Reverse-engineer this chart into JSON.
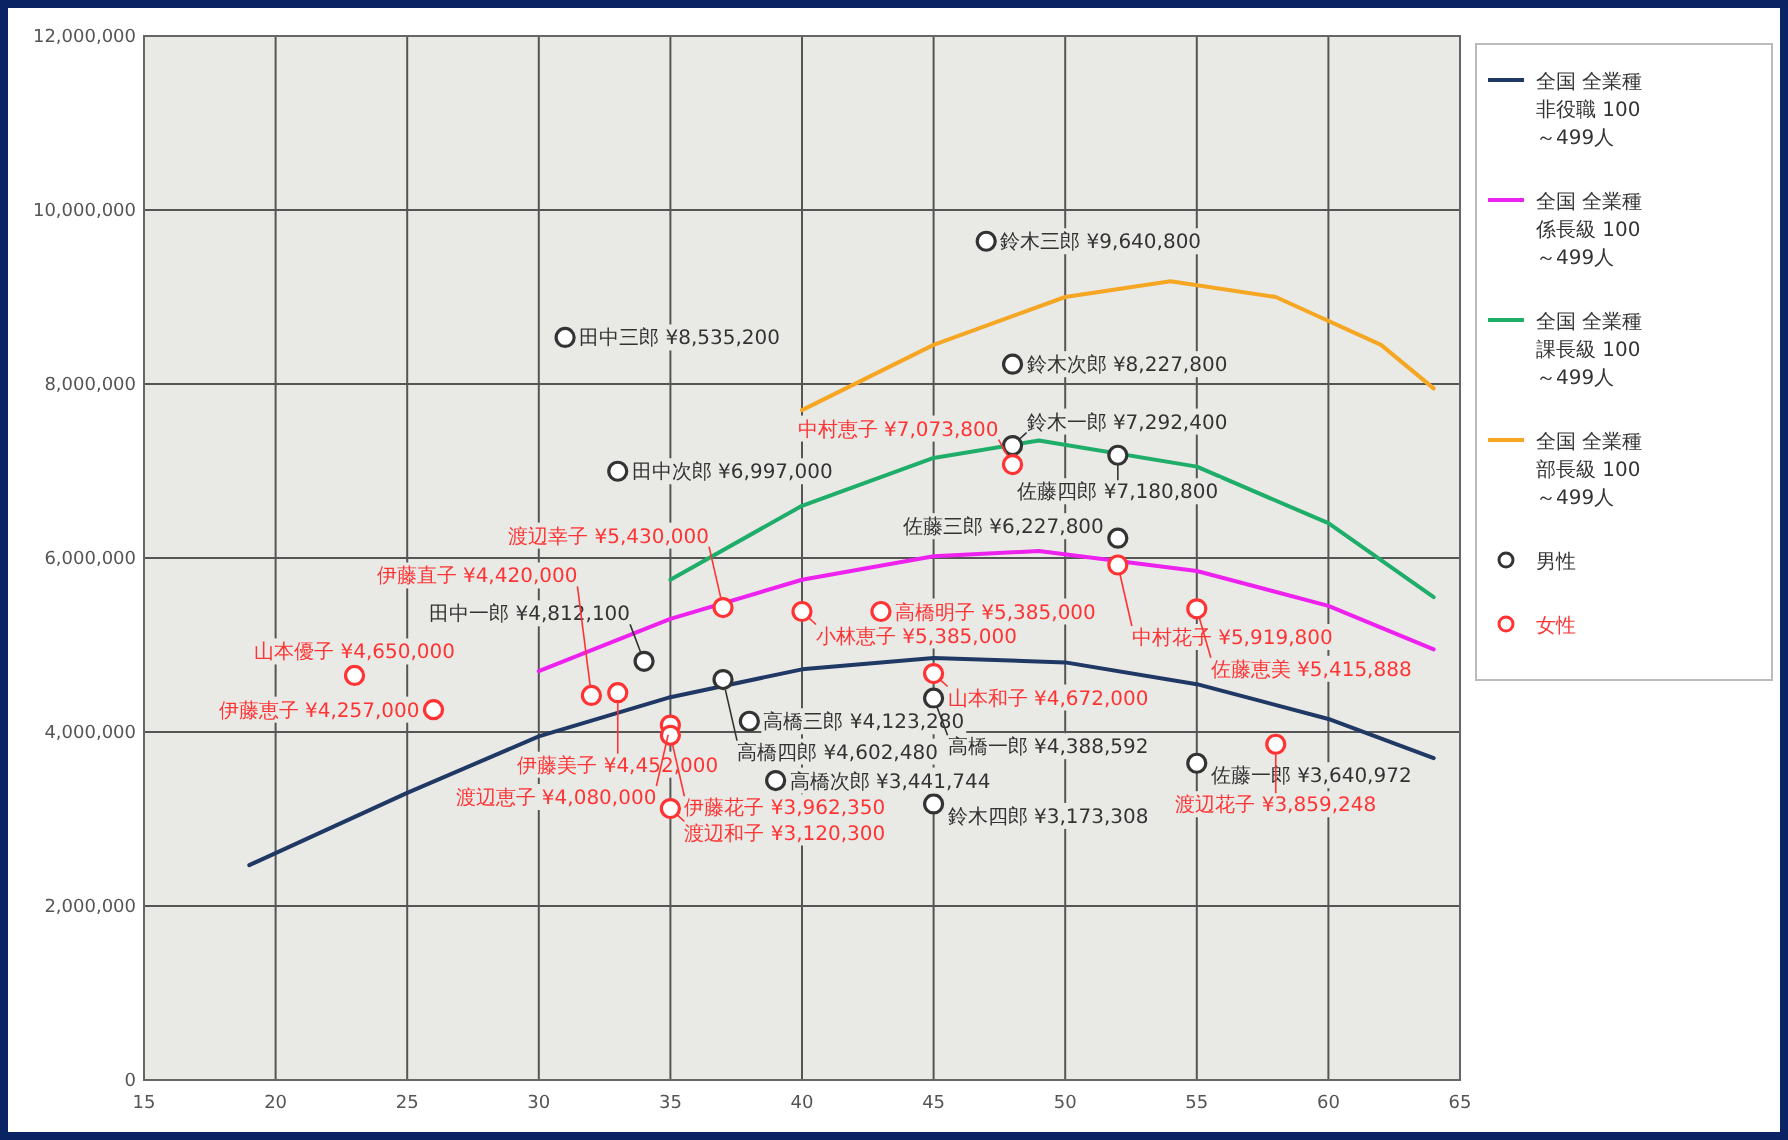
{
  "chart_data": {
    "type": "line",
    "xlim": [
      15,
      65
    ],
    "xticks": [
      15,
      20,
      25,
      30,
      35,
      40,
      45,
      50,
      55,
      60,
      65
    ],
    "ylim": [
      0,
      12000000
    ],
    "yticks": [
      0,
      {
        "value": 2000000,
        "label": "2,000,000"
      },
      {
        "value": 4000000,
        "label": "4,000,000"
      },
      {
        "value": 6000000,
        "label": "6,000,000"
      },
      {
        "value": 8000000,
        "label": "8,000,000"
      },
      {
        "value": 10000000,
        "label": "10,000,000"
      },
      {
        "value": 12000000,
        "label": "12,000,000"
      }
    ],
    "grid": true,
    "legend": "right",
    "series": [
      {
        "name": "全国 全業種非役職 100～499人",
        "color": "#1f3864",
        "x": [
          19,
          25,
          30,
          35,
          40,
          45,
          50,
          55,
          60,
          64
        ],
        "values": [
          2470000,
          3300000,
          3950000,
          4400000,
          4720000,
          4850000,
          4800000,
          4550000,
          4150000,
          3700000
        ]
      },
      {
        "name": "全国 全業種係長級 100～499人",
        "color": "#ee22ee",
        "x": [
          30,
          35,
          40,
          45,
          49,
          55,
          60,
          64
        ],
        "values": [
          4700000,
          5300000,
          5750000,
          6020000,
          6080000,
          5850000,
          5450000,
          4950000
        ]
      },
      {
        "name": "全国 全業種課長級 100～499人",
        "color": "#1fad6a",
        "x": [
          35,
          40,
          45,
          49,
          55,
          60,
          64
        ],
        "values": [
          5750000,
          6600000,
          7150000,
          7350000,
          7050000,
          6400000,
          5550000
        ]
      },
      {
        "name": "全国 全業種部長級 100～499人",
        "color": "#f5a623",
        "x": [
          40,
          45,
          50,
          54,
          58,
          62,
          64
        ],
        "values": [
          7700000,
          8450000,
          9000000,
          9180000,
          9000000,
          8450000,
          7950000
        ]
      },
      {
        "name": "男性",
        "type": "scatter",
        "marker": "circle",
        "color": "#333333",
        "x": [
          31,
          33,
          34,
          37,
          38,
          39,
          45,
          45,
          47,
          48,
          48,
          52,
          52,
          55
        ],
        "values": [
          8535200,
          6997000,
          4812100,
          4602480,
          4123280,
          3441744,
          3173308,
          4388592,
          9640800,
          8227800,
          7292400,
          7180800,
          6227800,
          3640972
        ]
      },
      {
        "name": "女性",
        "type": "scatter",
        "marker": "circle",
        "color": "#ff3333",
        "x": [
          23,
          26,
          32,
          33,
          35,
          35,
          35,
          37,
          40,
          43,
          45,
          48,
          52,
          55,
          58
        ],
        "values": [
          4650000,
          4257000,
          4420000,
          4452000,
          4080000,
          3962350,
          3120300,
          5430000,
          5385000,
          5385000,
          4672000,
          7073800,
          5919800,
          5415888,
          3859248
        ]
      }
    ],
    "annotations": [
      {
        "text": "田中三郎 ¥8,535,200",
        "x": 31,
        "y": 8535200
      },
      {
        "text": "田中次郎 ¥6,997,000",
        "x": 33,
        "y": 6997000
      },
      {
        "text": "田中一郎 ¥4,812,100",
        "x": 34,
        "y": 4812100
      },
      {
        "text": "高橋四郎 ¥4,602,480",
        "x": 37,
        "y": 4602480
      },
      {
        "text": "高橋三郎 ¥4,123,280",
        "x": 38,
        "y": 4123280
      },
      {
        "text": "高橋次郎 ¥3,441,744",
        "x": 39,
        "y": 3441744
      },
      {
        "text": "鈴木四郎 ¥3,173,308",
        "x": 45,
        "y": 3173308
      },
      {
        "text": "高橋一郎 ¥4,388,592",
        "x": 45,
        "y": 4388592
      },
      {
        "text": "鈴木三郎 ¥9,640,800",
        "x": 47,
        "y": 9640800
      },
      {
        "text": "鈴木次郎 ¥8,227,800",
        "x": 48,
        "y": 8227800
      },
      {
        "text": "鈴木一郎 ¥7,292,400",
        "x": 48,
        "y": 7292400
      },
      {
        "text": "佐藤四郎 ¥7,180,800",
        "x": 52,
        "y": 7180800
      },
      {
        "text": "佐藤三郎 ¥6,227,800",
        "x": 52,
        "y": 6227800
      },
      {
        "text": "佐藤一郎 ¥3,640,972",
        "x": 55,
        "y": 3640972
      },
      {
        "text": "山本優子 ¥4,650,000",
        "x": 23,
        "y": 4650000
      },
      {
        "text": "伊藤恵子 ¥4,257,000",
        "x": 26,
        "y": 4257000
      },
      {
        "text": "伊藤直子 ¥4,420,000",
        "x": 32,
        "y": 4420000
      },
      {
        "text": "伊藤美子 ¥4,452,000",
        "x": 33,
        "y": 4452000
      },
      {
        "text": "渡辺恵子 ¥4,080,000",
        "x": 35,
        "y": 4080000
      },
      {
        "text": "伊藤花子 ¥3,962,350",
        "x": 35,
        "y": 3962350
      },
      {
        "text": "渡辺和子 ¥3,120,300",
        "x": 35,
        "y": 3120300
      },
      {
        "text": "渡辺幸子 ¥5,430,000",
        "x": 37,
        "y": 5430000
      },
      {
        "text": "小林恵子 ¥5,385,000",
        "x": 40,
        "y": 5385000
      },
      {
        "text": "高橋明子 ¥5,385,000",
        "x": 43,
        "y": 5385000
      },
      {
        "text": "山本和子 ¥4,672,000",
        "x": 45,
        "y": 4672000
      },
      {
        "text": "中村恵子 ¥7,073,800",
        "x": 48,
        "y": 7073800
      },
      {
        "text": "中村花子 ¥5,919,800",
        "x": 52,
        "y": 5919800
      },
      {
        "text": "佐藤恵美 ¥5,415,888",
        "x": 55,
        "y": 5415888
      },
      {
        "text": "渡辺花子 ¥3,859,248",
        "x": 58,
        "y": 3859248
      }
    ]
  }
}
